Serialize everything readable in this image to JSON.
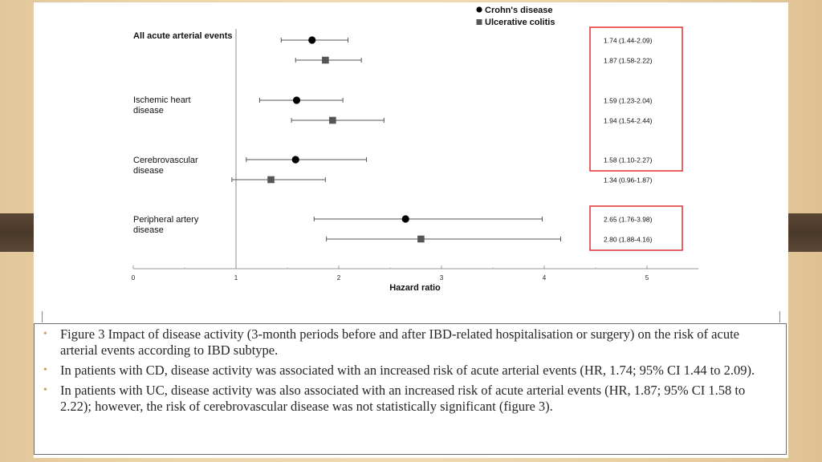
{
  "colors": {
    "crohns_marker": "#000000",
    "uc_marker": "#555555",
    "highlight_box": "#e03030",
    "bullet": "#c9a24a"
  },
  "chart_data": {
    "type": "forest",
    "xlabel": "Hazard ratio",
    "xlim": [
      0,
      5.5
    ],
    "x_ticks": [
      0,
      1,
      2,
      3,
      4,
      5
    ],
    "reference_line": 1,
    "legend": {
      "placement": "top-right",
      "entries": [
        {
          "name": "Crohn's disease",
          "marker": "circle"
        },
        {
          "name": "Ulcerative colitis",
          "marker": "square"
        }
      ]
    },
    "groups": [
      {
        "label_lines": [
          "All acute arterial events"
        ],
        "bold": true,
        "rows": [
          {
            "series": "Crohn's disease",
            "hr": 1.74,
            "lo": 1.44,
            "hi": 2.09,
            "text": "1.74 (1.44-2.09)"
          },
          {
            "series": "Ulcerative colitis",
            "hr": 1.87,
            "lo": 1.58,
            "hi": 2.22,
            "text": "1.87 (1.58-2.22)"
          }
        ]
      },
      {
        "label_lines": [
          "Ischemic heart",
          "disease"
        ],
        "bold": false,
        "rows": [
          {
            "series": "Crohn's disease",
            "hr": 1.59,
            "lo": 1.23,
            "hi": 2.04,
            "text": "1.59 (1.23-2.04)"
          },
          {
            "series": "Ulcerative colitis",
            "hr": 1.94,
            "lo": 1.54,
            "hi": 2.44,
            "text": "1.94 (1.54-2.44)"
          }
        ]
      },
      {
        "label_lines": [
          "Cerebrovascular",
          "disease"
        ],
        "bold": false,
        "rows": [
          {
            "series": "Crohn's disease",
            "hr": 1.58,
            "lo": 1.1,
            "hi": 2.27,
            "text": "1.58 (1.10-2.27)"
          },
          {
            "series": "Ulcerative colitis",
            "hr": 1.34,
            "lo": 0.96,
            "hi": 1.87,
            "text": "1.34 (0.96-1.87)"
          }
        ]
      },
      {
        "label_lines": [
          "Peripheral artery",
          "disease"
        ],
        "bold": false,
        "rows": [
          {
            "series": "Crohn's disease",
            "hr": 2.65,
            "lo": 1.76,
            "hi": 3.98,
            "text": "2.65 (1.76-3.98)"
          },
          {
            "series": "Ulcerative colitis",
            "hr": 2.8,
            "lo": 1.88,
            "hi": 4.16,
            "text": "2.80 (1.88-4.16)"
          }
        ]
      }
    ],
    "highlighted_rows": [
      [
        0,
        1,
        2,
        3,
        4
      ],
      [
        6,
        7
      ]
    ]
  },
  "caption": {
    "items": [
      "Figure 3 Impact of disease activity (3-month periods before and after IBD-related hospitalisation or surgery) on the risk of acute arterial events according to IBD subtype.",
      "In patients with CD, disease activity was associated with an increased risk of acute arterial events (HR, 1.74; 95% CI 1.44 to 2.09).",
      "In patients with UC, disease activity was also associated with an increased risk of acute arterial events (HR, 1.87; 95% CI 1.58 to 2.22); however, the risk of cerebrovascular disease was not statistically significant (figure 3)."
    ]
  }
}
